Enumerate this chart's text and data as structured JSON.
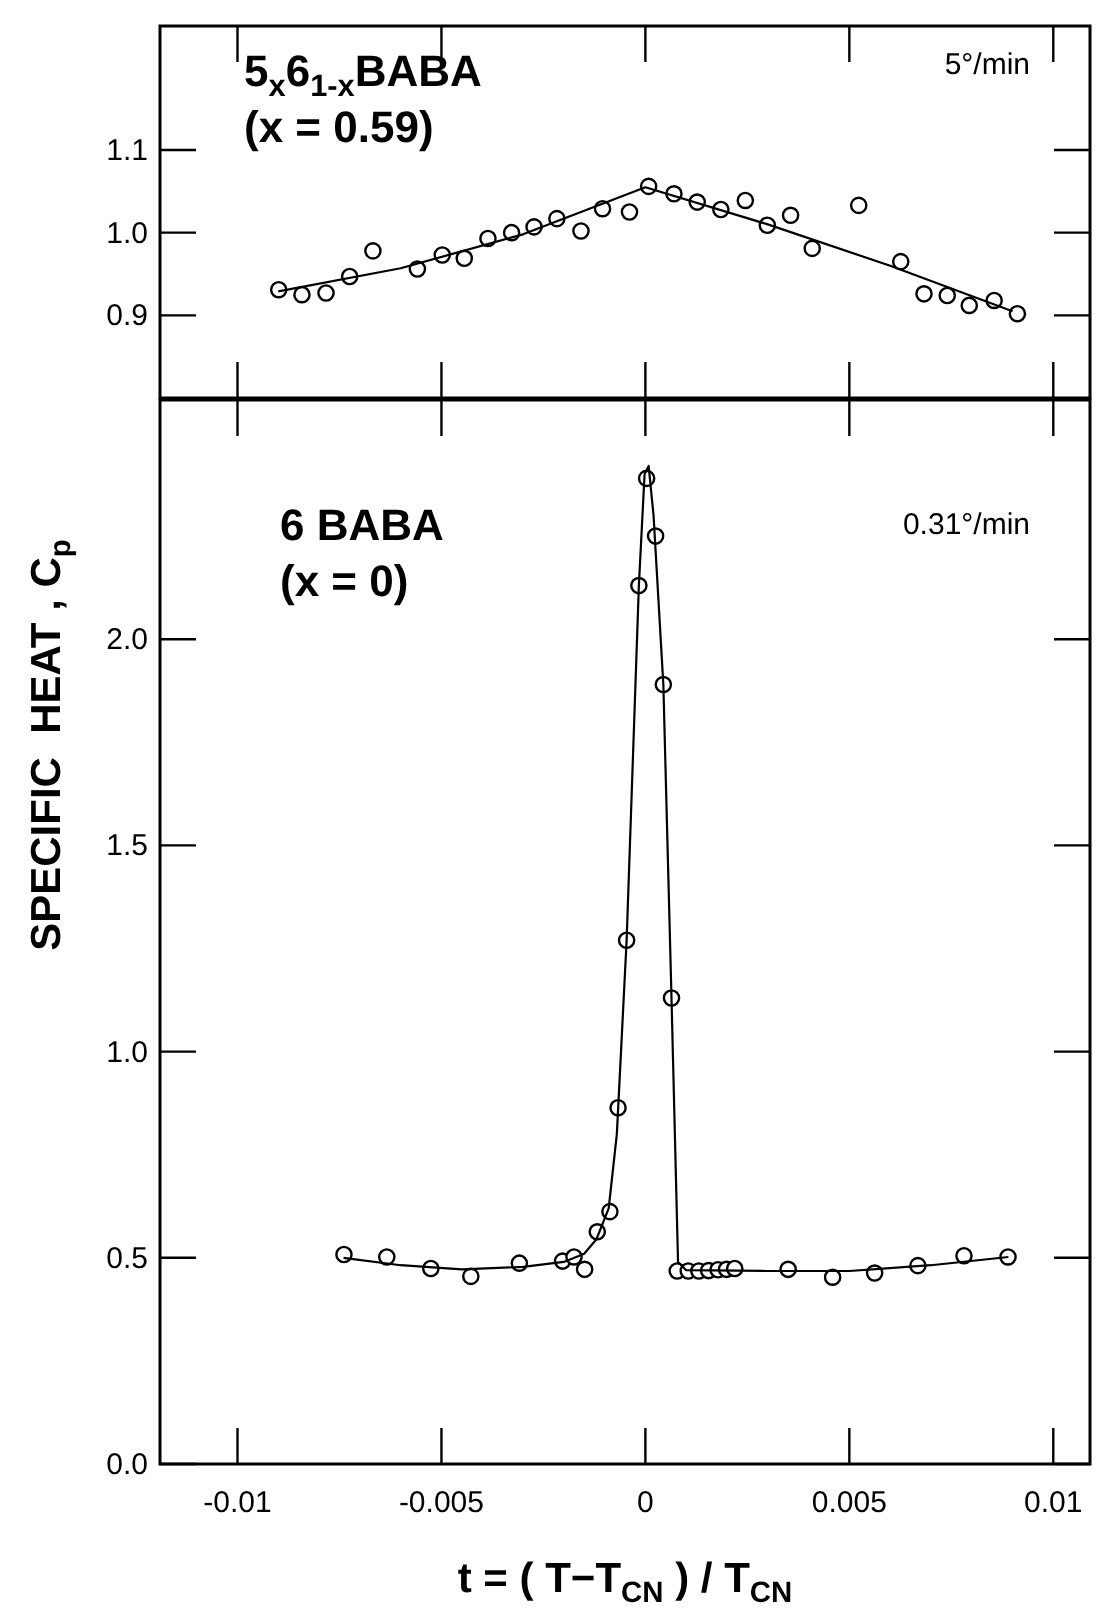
{
  "chart_data": [
    {
      "type": "scatter",
      "annotations": [
        "5$_{x}$6$_{1-x}$BABA",
        "(x = 0.59)",
        "5°/min"
      ],
      "xlim": [
        -0.0119,
        0.0109
      ],
      "xticks": [
        -0.01,
        -0.005,
        0,
        0.005,
        0.01
      ],
      "ylim": [
        0.8,
        1.25
      ],
      "yticks": [
        {
          "value": 0.9,
          "label": "0.9"
        },
        {
          "value": 1,
          "label": "1.0"
        },
        {
          "value": 1.1,
          "label": "1.1"
        }
      ],
      "tick_labels": "y",
      "series": [
        {
          "color": "#000000",
          "marker": "circle",
          "x": [
            -0.00899,
            -0.00842,
            -0.00783,
            -0.00725,
            -0.00668,
            -0.00559,
            -0.00498,
            -0.00444,
            -0.00386,
            -0.00328,
            -0.00273,
            -0.00217,
            -0.00158,
            -0.00105,
            -0.00039,
            8e-05,
            0.0007,
            0.00127,
            0.00185,
            0.00245,
            0.00299,
            0.00356,
            0.00409,
            0.00523,
            0.00626,
            0.00683,
            0.0074,
            0.00794,
            0.00855,
            0.00912
          ],
          "values": [
            0.931,
            0.925,
            0.927,
            0.947,
            0.978,
            0.956,
            0.973,
            0.969,
            0.993,
            1.0,
            1.007,
            1.017,
            1.002,
            1.029,
            1.025,
            1.056,
            1.047,
            1.037,
            1.028,
            1.039,
            1.009,
            1.021,
            0.981,
            1.033,
            0.965,
            0.926,
            0.924,
            0.912,
            0.918,
            0.902
          ]
        },
        {
          "type": "line",
          "color": "#000000",
          "line_style": "solid",
          "x": [
            -0.009,
            -0.006,
            -0.003,
            0,
            0.003,
            0.006,
            0.009
          ],
          "values": [
            0.929,
            0.957,
            0.998,
            1.055,
            1.01,
            0.96,
            0.905
          ]
        }
      ]
    },
    {
      "type": "scatter",
      "annotations": [
        "6 BABA",
        "(x = 0)",
        "0.31°/min"
      ],
      "xlabel": "t = ( T−T$_{CN}$ ) / T$_{CN}$",
      "ylabel": "SPECIFIC  HEAT , C$_{p}$",
      "xlim": [
        -0.0119,
        0.0109
      ],
      "xticks": [
        {
          "value": -0.01,
          "label": "-0.01"
        },
        {
          "value": -0.005,
          "label": "-0.005"
        },
        0,
        {
          "value": 0.005,
          "label": "0.005"
        },
        {
          "value": 0.01,
          "label": "0.01"
        }
      ],
      "ylim": [
        0,
        2.58
      ],
      "yticks": [
        {
          "value": 0,
          "label": "0.0"
        },
        {
          "value": 0.5,
          "label": "0.5"
        },
        {
          "value": 1,
          "label": "1.0"
        },
        {
          "value": 1.5,
          "label": "1.5"
        },
        {
          "value": 2,
          "label": "2.0"
        }
      ],
      "series": [
        {
          "color": "#000000",
          "marker": "circle",
          "x": [
            -0.00739,
            -0.00634,
            -0.00526,
            -0.00428,
            -0.00309,
            -0.00203,
            -0.00175,
            -0.00149,
            -0.00118,
            -0.00087,
            -0.00067,
            -0.00046,
            -0.00016,
            3e-05,
            0.00025,
            0.00044,
            0.00064,
            0.00078,
            0.00105,
            0.00131,
            0.00155,
            0.00178,
            0.00199,
            0.00219,
            0.0035,
            0.00459,
            0.00562,
            0.00668,
            0.00781,
            0.00889
          ],
          "values": [
            0.508,
            0.502,
            0.474,
            0.455,
            0.487,
            0.492,
            0.502,
            0.472,
            0.563,
            0.612,
            0.864,
            1.27,
            2.13,
            2.39,
            2.25,
            1.89,
            1.13,
            0.468,
            0.468,
            0.468,
            0.469,
            0.471,
            0.472,
            0.474,
            0.472,
            0.453,
            0.463,
            0.481,
            0.505,
            0.502
          ]
        },
        {
          "type": "line",
          "color": "#000000",
          "line_style": "solid",
          "x": [
            -0.0074,
            -0.006,
            -0.0045,
            -0.003,
            -0.002,
            -0.0015,
            -0.0012,
            -0.0009,
            -0.0007,
            -0.00046,
            -0.00016,
            -2e-05,
            8e-05,
            0.0002,
            0.00044,
            0.00064,
            0.0008,
            0.001,
            0.003,
            0.005,
            0.007,
            0.0089
          ],
          "values": [
            0.5,
            0.482,
            0.472,
            0.478,
            0.49,
            0.51,
            0.545,
            0.62,
            0.8,
            1.27,
            2.13,
            2.4,
            2.42,
            2.3,
            1.89,
            1.13,
            0.49,
            0.47,
            0.468,
            0.468,
            0.482,
            0.502
          ]
        }
      ]
    }
  ]
}
